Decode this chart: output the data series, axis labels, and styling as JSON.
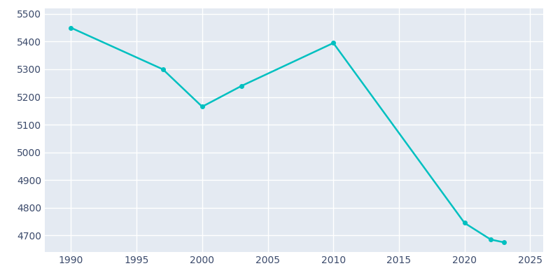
{
  "years": [
    1990,
    1997,
    2000,
    2003,
    2010,
    2020,
    2022,
    2023
  ],
  "population": [
    5450,
    5300,
    5165,
    5240,
    5395,
    4745,
    4685,
    4675
  ],
  "line_color": "#00C0C0",
  "marker_color": "#00C0C0",
  "plot_bg_color": "#E4EAF2",
  "fig_bg_color": "#FFFFFF",
  "grid_color": "#FFFFFF",
  "tick_color": "#3B4A6B",
  "xlim": [
    1988,
    2026
  ],
  "ylim": [
    4640,
    5520
  ],
  "xticks": [
    1990,
    1995,
    2000,
    2005,
    2010,
    2015,
    2020,
    2025
  ],
  "yticks": [
    4700,
    4800,
    4900,
    5000,
    5100,
    5200,
    5300,
    5400,
    5500
  ],
  "line_width": 1.8,
  "marker_size": 4
}
